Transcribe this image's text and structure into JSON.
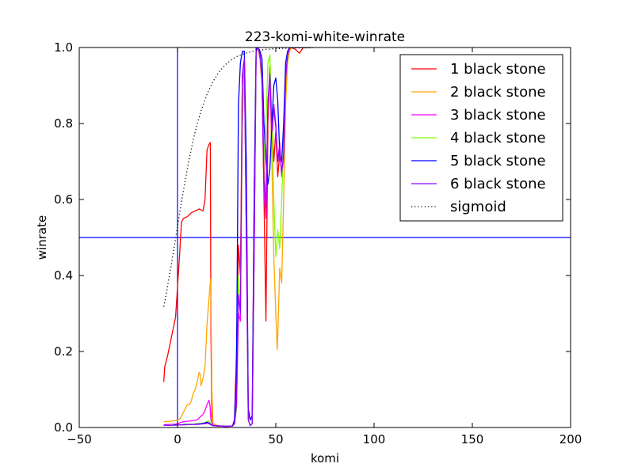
{
  "chart_data": {
    "type": "line",
    "title": "223-komi-white-winrate",
    "xlabel": "komi",
    "ylabel": "winrate",
    "xlim": [
      -50,
      200
    ],
    "ylim": [
      0,
      1
    ],
    "xticks": [
      -50,
      0,
      50,
      100,
      150,
      200
    ],
    "xtick_labels": [
      "−50",
      "0",
      "50",
      "100",
      "150",
      "200"
    ],
    "yticks": [
      0,
      0.2,
      0.4,
      0.6,
      0.8,
      1.0
    ],
    "ytick_labels": [
      "0.0",
      "0.2",
      "0.4",
      "0.6",
      "0.8",
      "1.0"
    ],
    "grid": false,
    "legend_position": "top-right",
    "reference_lines": [
      {
        "orientation": "vertical",
        "value": 0,
        "color": "#0000ff"
      },
      {
        "orientation": "horizontal",
        "value": 0.5,
        "color": "#0000ff"
      }
    ],
    "series": [
      {
        "name": "1 black stone",
        "color": "#ff0000",
        "style": "solid",
        "x": [
          -7,
          -6.5,
          -5,
          -3,
          -1,
          0,
          1,
          2,
          3,
          5,
          7,
          9,
          11,
          13,
          14,
          15,
          16,
          16.7,
          17,
          17.5,
          18,
          20,
          25,
          28,
          29,
          30,
          31,
          32,
          33,
          34,
          35,
          36,
          37,
          38,
          39,
          40,
          41,
          42,
          43,
          44,
          45,
          46,
          47,
          48,
          49,
          50,
          51,
          52,
          53,
          54,
          55,
          56,
          57,
          58,
          60,
          62,
          64,
          66,
          68
        ],
        "y": [
          0.12,
          0.16,
          0.19,
          0.24,
          0.29,
          0.37,
          0.45,
          0.54,
          0.55,
          0.555,
          0.565,
          0.57,
          0.575,
          0.57,
          0.6,
          0.73,
          0.745,
          0.75,
          0.25,
          0.03,
          0.01,
          0.005,
          0.003,
          0.004,
          0.02,
          0.2,
          0.48,
          0.4,
          0.93,
          0.97,
          0.6,
          0.04,
          0.02,
          0.03,
          0.6,
          0.995,
          1.0,
          0.97,
          0.9,
          0.6,
          0.28,
          0.8,
          0.95,
          0.8,
          0.7,
          0.78,
          0.66,
          0.72,
          0.67,
          0.7,
          0.9,
          0.98,
          0.995,
          1.0,
          0.995,
          0.985,
          1.0,
          1.0,
          1.0
        ]
      },
      {
        "name": "2 black stone",
        "color": "#ffa500",
        "style": "solid",
        "x": [
          -7,
          -5,
          -3,
          -1,
          0,
          1,
          2,
          3,
          4,
          5,
          6,
          7,
          8,
          9,
          10,
          11,
          11.5,
          12,
          13,
          14,
          15,
          16,
          16.8,
          17,
          17.5,
          18,
          20,
          25,
          28,
          29,
          30,
          31,
          32,
          33,
          34,
          35,
          36,
          37,
          38,
          39,
          40,
          41,
          42,
          43,
          44,
          45,
          46,
          47,
          48,
          49,
          50,
          50.7,
          51,
          52,
          53,
          54,
          55,
          56,
          57,
          58,
          60,
          62,
          64,
          66,
          68
        ],
        "y": [
          0.015,
          0.016,
          0.017,
          0.018,
          0.019,
          0.022,
          0.03,
          0.04,
          0.05,
          0.06,
          0.06,
          0.07,
          0.09,
          0.1,
          0.12,
          0.145,
          0.14,
          0.11,
          0.13,
          0.16,
          0.27,
          0.34,
          0.39,
          0.34,
          0.1,
          0.01,
          0.004,
          0.003,
          0.004,
          0.01,
          0.1,
          0.3,
          0.3,
          0.8,
          0.95,
          0.6,
          0.02,
          0.005,
          0.01,
          0.5,
          0.99,
          1.0,
          0.98,
          0.9,
          0.7,
          0.6,
          0.85,
          0.93,
          0.7,
          0.45,
          0.3,
          0.205,
          0.24,
          0.42,
          0.38,
          0.6,
          0.85,
          0.96,
          0.99,
          1.0,
          1.0,
          1.0,
          1.0,
          1.0,
          1.0
        ]
      },
      {
        "name": "3 black stone",
        "color": "#ff00ff",
        "style": "solid",
        "x": [
          -7,
          -5,
          -3,
          -1,
          0,
          1,
          2,
          4,
          6,
          8,
          10,
          12,
          13,
          14,
          15,
          16,
          16.5,
          17,
          18,
          20,
          25,
          28,
          29,
          30,
          31,
          32,
          33,
          34,
          35,
          36,
          37,
          38,
          39,
          40,
          41,
          42,
          43,
          44,
          45,
          46,
          47,
          48,
          49,
          50,
          51,
          52,
          53,
          54,
          55,
          56,
          57,
          58,
          60,
          62,
          64,
          66,
          68
        ],
        "y": [
          0.007,
          0.008,
          0.008,
          0.009,
          0.01,
          0.012,
          0.014,
          0.016,
          0.017,
          0.018,
          0.02,
          0.03,
          0.035,
          0.045,
          0.06,
          0.072,
          0.06,
          0.02,
          0.006,
          0.004,
          0.003,
          0.004,
          0.01,
          0.05,
          0.3,
          0.28,
          0.9,
          0.97,
          0.5,
          0.02,
          0.005,
          0.01,
          0.45,
          0.99,
          1.0,
          0.98,
          0.92,
          0.62,
          0.55,
          0.85,
          0.93,
          0.75,
          0.85,
          0.8,
          0.7,
          0.75,
          0.66,
          0.72,
          0.92,
          0.98,
          1.0,
          1.0,
          1.0,
          1.0,
          1.0,
          1.0,
          1.0
        ]
      },
      {
        "name": "4 black stone",
        "color": "#7fff00",
        "style": "solid",
        "x": [
          -7,
          -5,
          -3,
          -1,
          0,
          2,
          4,
          6,
          8,
          10,
          12,
          14,
          15,
          16,
          17,
          18,
          20,
          25,
          28,
          29,
          30,
          31,
          32,
          33,
          34,
          35,
          36,
          37,
          38,
          39,
          40,
          41,
          42,
          43,
          44,
          45,
          46,
          47,
          48,
          49,
          50,
          51,
          52,
          53,
          54,
          55,
          56,
          57,
          58,
          60,
          62,
          64,
          66,
          68
        ],
        "y": [
          0.006,
          0.006,
          0.007,
          0.007,
          0.007,
          0.008,
          0.008,
          0.009,
          0.009,
          0.01,
          0.011,
          0.013,
          0.016,
          0.018,
          0.01,
          0.005,
          0.004,
          0.003,
          0.004,
          0.01,
          0.05,
          0.4,
          0.3,
          0.92,
          0.97,
          0.55,
          0.02,
          0.005,
          0.01,
          0.5,
          0.99,
          1.0,
          0.98,
          0.93,
          0.7,
          0.8,
          0.96,
          0.98,
          0.8,
          0.6,
          0.45,
          0.52,
          0.47,
          0.6,
          0.75,
          0.92,
          0.98,
          1.0,
          1.0,
          1.0,
          1.0,
          1.0,
          1.0,
          1.0
        ]
      },
      {
        "name": "5 black stone",
        "color": "#0000ff",
        "style": "solid",
        "x": [
          -7,
          -5,
          -3,
          -1,
          0,
          2,
          4,
          6,
          8,
          10,
          12,
          14,
          15,
          16,
          17,
          18,
          20,
          25,
          28,
          29,
          30,
          31,
          32,
          33,
          34,
          35,
          36,
          37,
          38,
          39,
          40,
          41,
          42,
          43,
          44,
          45,
          46,
          47,
          48,
          49,
          50,
          51,
          52,
          53,
          54,
          55,
          56,
          57,
          58,
          60,
          62,
          64,
          66,
          68
        ],
        "y": [
          0.006,
          0.006,
          0.006,
          0.007,
          0.007,
          0.007,
          0.008,
          0.008,
          0.008,
          0.009,
          0.01,
          0.012,
          0.014,
          0.012,
          0.008,
          0.005,
          0.004,
          0.003,
          0.004,
          0.02,
          0.15,
          0.85,
          0.96,
          0.99,
          0.99,
          0.7,
          0.05,
          0.02,
          0.03,
          0.6,
          1.0,
          1.0,
          0.99,
          0.97,
          0.8,
          0.7,
          0.64,
          0.68,
          0.8,
          0.9,
          0.92,
          0.86,
          0.72,
          0.7,
          0.8,
          0.96,
          0.99,
          1.0,
          1.0,
          1.0,
          1.0,
          1.0,
          1.0,
          1.0
        ]
      },
      {
        "name": "6 black stone",
        "color": "#9400ff",
        "style": "solid",
        "x": [
          -7,
          -5,
          -3,
          -1,
          0,
          2,
          4,
          6,
          8,
          10,
          12,
          14,
          15,
          16,
          17,
          18,
          20,
          25,
          28,
          29,
          30,
          31,
          32,
          33,
          34,
          35,
          36,
          37,
          38,
          39,
          40,
          41,
          42,
          43,
          44,
          45,
          46,
          47,
          48,
          49,
          50,
          51,
          52,
          53,
          54,
          55,
          56,
          57,
          58,
          60,
          62,
          64,
          66,
          68
        ],
        "y": [
          0.006,
          0.006,
          0.006,
          0.006,
          0.007,
          0.007,
          0.007,
          0.008,
          0.008,
          0.008,
          0.009,
          0.01,
          0.011,
          0.01,
          0.007,
          0.005,
          0.004,
          0.003,
          0.004,
          0.01,
          0.06,
          0.35,
          0.3,
          0.93,
          0.97,
          0.52,
          0.02,
          0.005,
          0.01,
          0.48,
          0.99,
          1.0,
          0.98,
          0.92,
          0.65,
          0.58,
          0.86,
          0.93,
          0.78,
          0.84,
          0.79,
          0.7,
          0.74,
          0.67,
          0.72,
          0.92,
          0.98,
          1.0,
          1.0,
          1.0,
          1.0,
          1.0,
          1.0,
          1.0
        ]
      },
      {
        "name": "sigmoid",
        "color": "#000000",
        "style": "dotted",
        "x": [
          -7,
          -6,
          -5,
          -4,
          -3,
          -2,
          -1,
          0,
          2,
          4,
          6,
          8,
          10,
          12,
          15,
          18,
          21,
          24,
          27,
          30,
          33,
          36,
          40,
          45,
          50,
          55,
          60,
          65,
          70
        ],
        "y": [
          0.318,
          0.345,
          0.374,
          0.404,
          0.434,
          0.465,
          0.497,
          0.529,
          0.593,
          0.653,
          0.708,
          0.757,
          0.799,
          0.834,
          0.877,
          0.91,
          0.935,
          0.953,
          0.966,
          0.976,
          0.982,
          0.987,
          0.992,
          0.995,
          0.997,
          0.998,
          0.999,
          0.999,
          1.0
        ]
      }
    ]
  }
}
